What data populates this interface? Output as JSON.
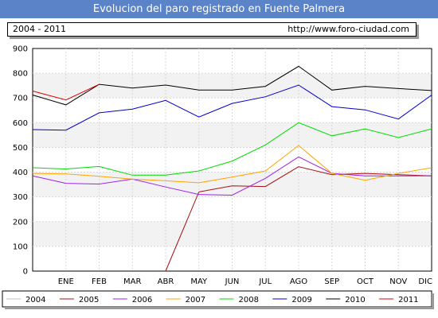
{
  "header": {
    "title": "Evolucion del paro registrado en Fuente Palmera",
    "period": "2004 - 2011",
    "site": "http://www.foro-ciudad.com"
  },
  "chart_data": {
    "type": "line",
    "title": "Evolucion del paro registrado en Fuente Palmera",
    "xlabel": "",
    "ylabel": "",
    "categories": [
      "",
      "ENE",
      "FEB",
      "MAR",
      "ABR",
      "MAY",
      "JUN",
      "JUL",
      "AGO",
      "SEP",
      "OCT",
      "NOV",
      "DIC"
    ],
    "ylim": [
      0,
      900
    ],
    "yticks": [
      0,
      100,
      200,
      300,
      400,
      500,
      600,
      700,
      800,
      900
    ],
    "grid": true,
    "legend_position": "bottom",
    "series": [
      {
        "name": "2004",
        "color": "#c0c0c0",
        "values": [
          null,
          null,
          null,
          null,
          null,
          null,
          null,
          null,
          null,
          null,
          null,
          null,
          null
        ]
      },
      {
        "name": "2005",
        "color": "#aa1010",
        "values": [
          null,
          null,
          null,
          null,
          0,
          320,
          345,
          342,
          422,
          390,
          395,
          390,
          385
        ]
      },
      {
        "name": "2006",
        "color": "#a020f0",
        "values": [
          385,
          355,
          352,
          372,
          340,
          310,
          307,
          375,
          462,
          395,
          385,
          385,
          385
        ]
      },
      {
        "name": "2007",
        "color": "#ffa500",
        "values": [
          395,
          393,
          383,
          372,
          365,
          357,
          380,
          405,
          508,
          395,
          367,
          395,
          418
        ]
      },
      {
        "name": "2008",
        "color": "#00dd00",
        "values": [
          418,
          413,
          423,
          388,
          388,
          405,
          445,
          510,
          600,
          547,
          575,
          540,
          575
        ]
      },
      {
        "name": "2009",
        "color": "#0000cc",
        "values": [
          572,
          570,
          640,
          655,
          690,
          623,
          678,
          705,
          752,
          665,
          652,
          615,
          712
        ]
      },
      {
        "name": "2010",
        "color": "#000000",
        "values": [
          712,
          672,
          755,
          740,
          752,
          732,
          732,
          747,
          828,
          732,
          747,
          738,
          730
        ]
      },
      {
        "name": "2011",
        "color": "#dd0000",
        "values": [
          728,
          692,
          755,
          null,
          null,
          null,
          null,
          null,
          null,
          null,
          null,
          null,
          null
        ]
      }
    ]
  }
}
